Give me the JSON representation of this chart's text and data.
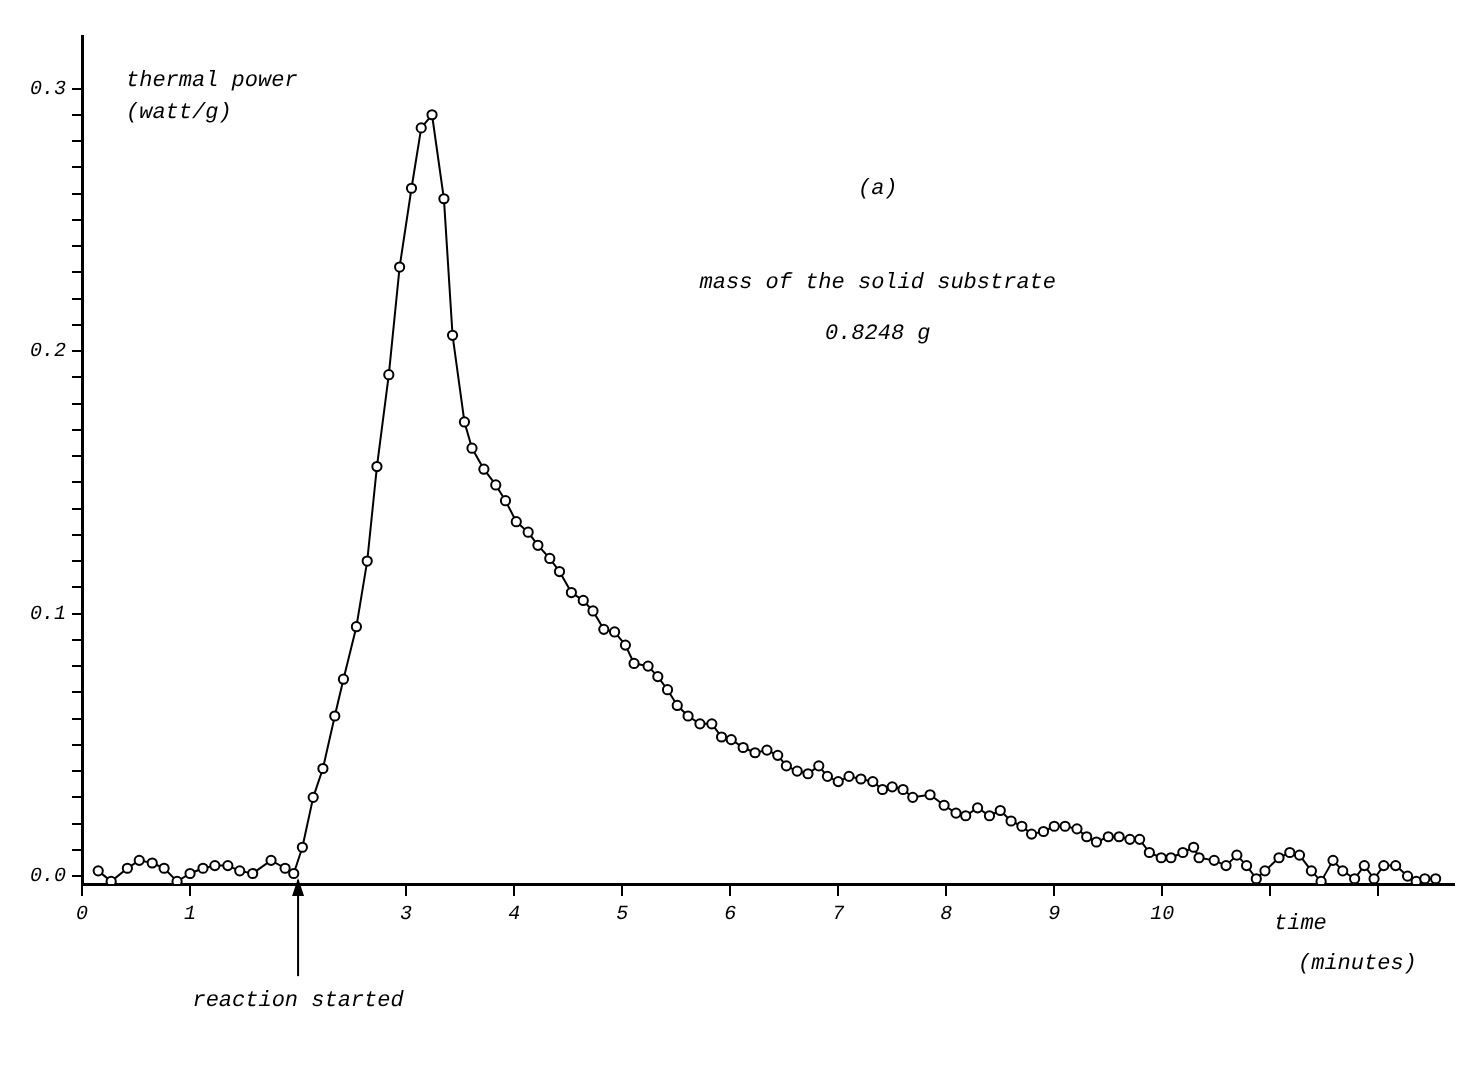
{
  "chart_data": {
    "type": "line",
    "ylabel": "thermal power\n(watt/g)",
    "xlabel": "time\n(minutes)",
    "annotations": [
      "(a)",
      "mass of the solid substrate",
      "0.8248 g",
      {
        "text": "reaction started",
        "x": 2,
        "y": 0
      }
    ],
    "xlim": [
      0,
      12.7
    ],
    "ylim": [
      -0.003,
      0.32
    ],
    "xticks": [
      {
        "value": 0,
        "label": "0"
      },
      {
        "value": 1,
        "label": "1"
      },
      {
        "value": 2,
        "label": null
      },
      {
        "value": 3,
        "label": "3"
      },
      {
        "value": 4,
        "label": "4"
      },
      {
        "value": 5,
        "label": "5"
      },
      {
        "value": 6,
        "label": "6"
      },
      {
        "value": 7,
        "label": "7"
      },
      {
        "value": 8,
        "label": "8"
      },
      {
        "value": 9,
        "label": "9"
      },
      {
        "value": 10,
        "label": "10"
      },
      {
        "value": 11,
        "label": null
      },
      {
        "value": 12,
        "label": null
      }
    ],
    "yticks": [
      {
        "value": 0,
        "label": "0.0"
      },
      {
        "value": 0.01,
        "label": null
      },
      {
        "value": 0.02,
        "label": null
      },
      {
        "value": 0.03,
        "label": null
      },
      {
        "value": 0.04,
        "label": null
      },
      {
        "value": 0.05,
        "label": null
      },
      {
        "value": 0.06,
        "label": null
      },
      {
        "value": 0.07,
        "label": null
      },
      {
        "value": 0.08,
        "label": null
      },
      {
        "value": 0.09,
        "label": null
      },
      {
        "value": 0.1,
        "label": "0.1"
      },
      {
        "value": 0.11,
        "label": null
      },
      {
        "value": 0.12,
        "label": null
      },
      {
        "value": 0.13,
        "label": null
      },
      {
        "value": 0.14,
        "label": null
      },
      {
        "value": 0.15,
        "label": null
      },
      {
        "value": 0.16,
        "label": null
      },
      {
        "value": 0.17,
        "label": null
      },
      {
        "value": 0.18,
        "label": null
      },
      {
        "value": 0.19,
        "label": null
      },
      {
        "value": 0.2,
        "label": "0.2"
      },
      {
        "value": 0.21,
        "label": null
      },
      {
        "value": 0.22,
        "label": null
      },
      {
        "value": 0.23,
        "label": null
      },
      {
        "value": 0.24,
        "label": null
      },
      {
        "value": 0.25,
        "label": null
      },
      {
        "value": 0.26,
        "label": null
      },
      {
        "value": 0.27,
        "label": null
      },
      {
        "value": 0.28,
        "label": null
      },
      {
        "value": 0.29,
        "label": null
      },
      {
        "value": 0.3,
        "label": "0.3"
      }
    ],
    "grid": false,
    "legend": false,
    "marker": "circle",
    "line_style": "solid",
    "series": [
      {
        "color": "#000000",
        "x": [
          0.15,
          0.27,
          0.42,
          0.53,
          0.65,
          0.76,
          0.88,
          1.0,
          1.12,
          1.23,
          1.35,
          1.46,
          1.58,
          1.75,
          1.88,
          1.96,
          2.04,
          2.14,
          2.23,
          2.34,
          2.42,
          2.54,
          2.64,
          2.73,
          2.84,
          2.94,
          3.05,
          3.14,
          3.24,
          3.35,
          3.43,
          3.54,
          3.61,
          3.72,
          3.83,
          3.92,
          4.02,
          4.13,
          4.22,
          4.33,
          4.42,
          4.53,
          4.64,
          4.73,
          4.83,
          4.93,
          5.03,
          5.11,
          5.24,
          5.33,
          5.42,
          5.51,
          5.61,
          5.72,
          5.83,
          5.92,
          6.01,
          6.12,
          6.23,
          6.34,
          6.44,
          6.52,
          6.62,
          6.72,
          6.82,
          6.9,
          7.0,
          7.1,
          7.21,
          7.32,
          7.41,
          7.5,
          7.6,
          7.69,
          7.85,
          7.98,
          8.09,
          8.18,
          8.29,
          8.4,
          8.5,
          8.6,
          8.7,
          8.79,
          8.9,
          9.0,
          9.1,
          9.21,
          9.3,
          9.39,
          9.5,
          9.6,
          9.7,
          9.79,
          9.88,
          9.99,
          10.08,
          10.19,
          10.29,
          10.34,
          10.48,
          10.59,
          10.69,
          10.78,
          10.87,
          10.95,
          11.08,
          11.18,
          11.27,
          11.38,
          11.47,
          11.58,
          11.67,
          11.78,
          11.87,
          11.96,
          12.05,
          12.16,
          12.27,
          12.35,
          12.43,
          12.53
        ],
        "values": [
          0.002,
          -0.002,
          0.003,
          0.006,
          0.005,
          0.003,
          -0.002,
          0.001,
          0.003,
          0.004,
          0.004,
          0.002,
          0.001,
          0.006,
          0.003,
          0.001,
          0.011,
          0.03,
          0.041,
          0.061,
          0.075,
          0.095,
          0.12,
          0.156,
          0.191,
          0.232,
          0.262,
          0.285,
          0.29,
          0.258,
          0.206,
          0.173,
          0.163,
          0.155,
          0.149,
          0.143,
          0.135,
          0.131,
          0.126,
          0.121,
          0.116,
          0.108,
          0.105,
          0.101,
          0.094,
          0.093,
          0.088,
          0.081,
          0.08,
          0.076,
          0.071,
          0.065,
          0.061,
          0.058,
          0.058,
          0.053,
          0.052,
          0.049,
          0.047,
          0.048,
          0.046,
          0.042,
          0.04,
          0.039,
          0.042,
          0.038,
          0.036,
          0.038,
          0.037,
          0.036,
          0.033,
          0.034,
          0.033,
          0.03,
          0.031,
          0.027,
          0.024,
          0.023,
          0.026,
          0.023,
          0.025,
          0.021,
          0.019,
          0.016,
          0.017,
          0.019,
          0.019,
          0.018,
          0.015,
          0.013,
          0.015,
          0.015,
          0.014,
          0.014,
          0.009,
          0.007,
          0.007,
          0.009,
          0.011,
          0.007,
          0.006,
          0.004,
          0.008,
          0.004,
          -0.001,
          0.002,
          0.007,
          0.009,
          0.008,
          0.002,
          -0.002,
          0.006,
          0.002,
          -0.001,
          0.004,
          -0.001,
          0.004,
          0.004,
          0.0,
          -0.002,
          -0.001,
          -0.001
        ]
      }
    ]
  }
}
